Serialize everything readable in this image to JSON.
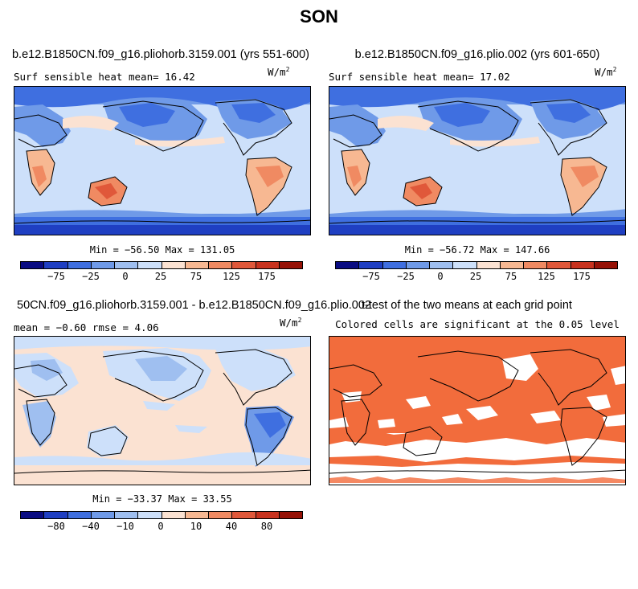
{
  "title": "SON",
  "panels": [
    {
      "title": "b.e12.B1850CN.f09_g16.pliohorb.3159.001 (yrs 551-600)",
      "subtitle": "Surf sensible heat   mean=  16.42",
      "units": "W/m",
      "units_exp": "2",
      "minmax": "Min = −56.50 Max = 131.05",
      "colorbar": {
        "colors": [
          "#0a0c82",
          "#1f3fc2",
          "#3f6fe0",
          "#6f9ae8",
          "#9fbff0",
          "#cde0fa",
          "#fbe2d2",
          "#f7b892",
          "#f08a62",
          "#e0583a",
          "#c8321e",
          "#961106"
        ],
        "ticks": [
          "−75",
          "−25",
          "0",
          "25",
          "75",
          "125",
          "175"
        ]
      }
    },
    {
      "title": "b.e12.B1850CN.f09_g16.plio.002 (yrs 601-650)",
      "subtitle": "Surf sensible heat   mean=  17.02",
      "units": "W/m",
      "units_exp": "2",
      "minmax": "Min = −56.72 Max = 147.66",
      "colorbar": {
        "colors": [
          "#0a0c82",
          "#1f3fc2",
          "#3f6fe0",
          "#6f9ae8",
          "#9fbff0",
          "#cde0fa",
          "#fbe2d2",
          "#f7b892",
          "#f08a62",
          "#e0583a",
          "#c8321e",
          "#961106"
        ],
        "ticks": [
          "−75",
          "−25",
          "0",
          "25",
          "75",
          "125",
          "175"
        ]
      }
    },
    {
      "title": "50CN.f09_g16.pliohorb.3159.001 - b.e12.B1850CN.f09_g16.plio.002",
      "subtitle": "mean =  −0.60     rmse =   4.06",
      "units": "W/m",
      "units_exp": "2",
      "minmax": "Min = −33.37 Max =  33.55",
      "colorbar": {
        "colors": [
          "#0a0c82",
          "#1f3fc2",
          "#3f6fe0",
          "#6f9ae8",
          "#9fbff0",
          "#cde0fa",
          "#fbe2d2",
          "#f7b892",
          "#f08a62",
          "#e0583a",
          "#c8321e",
          "#961106"
        ],
        "ticks": [
          "−80",
          "−40",
          "−10",
          "0",
          "10",
          "40",
          "80"
        ]
      }
    },
    {
      "title": "t-test of the two means at each grid point",
      "subtitle": "Colored cells are significant at the 0.05 level"
    }
  ]
}
